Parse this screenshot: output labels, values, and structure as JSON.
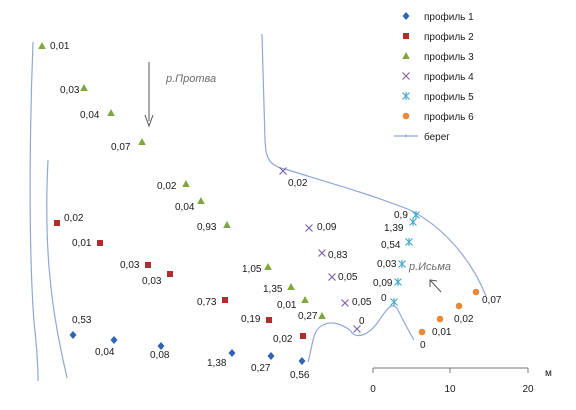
{
  "chart_data": {
    "type": "scatter",
    "legend_position": "top-right",
    "grid": false,
    "series": [
      {
        "name": "профиль 1",
        "marker": "diamond",
        "color": "#2e64b5",
        "points": [
          {
            "label": "0,53"
          },
          {
            "label": "0,04"
          },
          {
            "label": "0,08"
          },
          {
            "label": "1,38"
          },
          {
            "label": "0,27"
          },
          {
            "label": "0,56"
          }
        ]
      },
      {
        "name": "профиль 2",
        "marker": "square",
        "color": "#b32c2c",
        "points": [
          {
            "label": "0,02"
          },
          {
            "label": "0,01"
          },
          {
            "label": "0,03"
          },
          {
            "label": "0,03"
          },
          {
            "label": "0,73"
          },
          {
            "label": "0,19"
          },
          {
            "label": "0,02"
          }
        ]
      },
      {
        "name": "профиль 3",
        "marker": "triangle",
        "color": "#7ea93a",
        "points": [
          {
            "label": "0,01"
          },
          {
            "label": "0,03"
          },
          {
            "label": "0,04"
          },
          {
            "label": "0,07"
          },
          {
            "label": "0,02"
          },
          {
            "label": "0,04"
          },
          {
            "label": "0,93"
          },
          {
            "label": "1,05"
          },
          {
            "label": "1,35"
          },
          {
            "label": "0,01"
          },
          {
            "label": "0,27"
          }
        ]
      },
      {
        "name": "профиль 4",
        "marker": "x",
        "color": "#8064a8",
        "points": [
          {
            "label": "0,02"
          },
          {
            "label": "0,09"
          },
          {
            "label": "0,83"
          },
          {
            "label": "0,05"
          },
          {
            "label": "0,05"
          },
          {
            "label": "0"
          }
        ]
      },
      {
        "name": "профиль 5",
        "marker": "star",
        "color": "#3fa7c8",
        "points": [
          {
            "label": "0,9"
          },
          {
            "label": "1,39"
          },
          {
            "label": "0,54"
          },
          {
            "label": "0,03"
          },
          {
            "label": "0,09"
          },
          {
            "label": "0"
          }
        ]
      },
      {
        "name": "профиль 6",
        "marker": "circle",
        "color": "#e8883a",
        "points": [
          {
            "label": "0"
          },
          {
            "label": "0,01"
          },
          {
            "label": "0,02"
          },
          {
            "label": "0,07"
          }
        ]
      },
      {
        "name": "берег",
        "marker": "line",
        "color": "#8fa9d6"
      }
    ],
    "annotations": {
      "river_protva": "р.Протва",
      "river_isma": "р.Исьма"
    },
    "scale_bar": {
      "unit": "м",
      "ticks": [
        "0",
        "10",
        "20"
      ]
    }
  }
}
